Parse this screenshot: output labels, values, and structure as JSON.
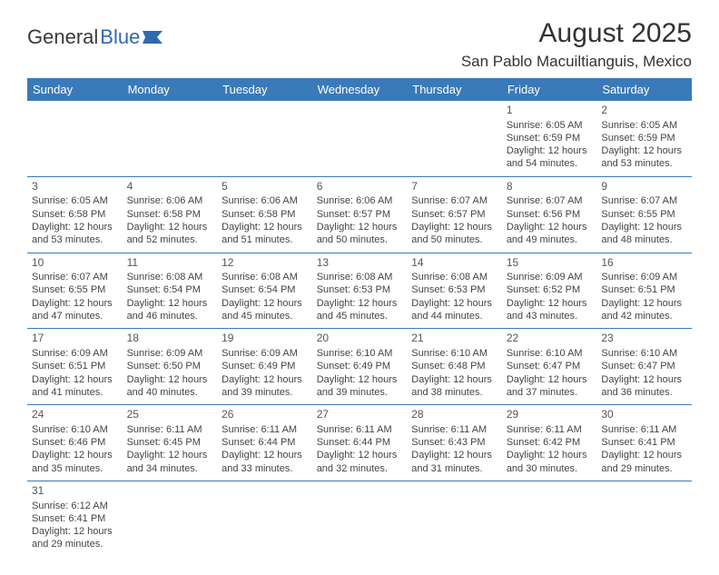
{
  "logo": {
    "text1": "General",
    "text2": "Blue"
  },
  "title": "August 2025",
  "location": "San Pablo Macuiltianguis, Mexico",
  "colors": {
    "header_bg": "#3a7ab8",
    "header_fg": "#ffffff",
    "rule": "#3a7ab8",
    "text": "#444444",
    "logo_blue": "#2f6aad"
  },
  "weekdays": [
    "Sunday",
    "Monday",
    "Tuesday",
    "Wednesday",
    "Thursday",
    "Friday",
    "Saturday"
  ],
  "weeks": [
    [
      null,
      null,
      null,
      null,
      null,
      {
        "n": "1",
        "sr": "Sunrise: 6:05 AM",
        "ss": "Sunset: 6:59 PM",
        "d1": "Daylight: 12 hours",
        "d2": "and 54 minutes."
      },
      {
        "n": "2",
        "sr": "Sunrise: 6:05 AM",
        "ss": "Sunset: 6:59 PM",
        "d1": "Daylight: 12 hours",
        "d2": "and 53 minutes."
      }
    ],
    [
      {
        "n": "3",
        "sr": "Sunrise: 6:05 AM",
        "ss": "Sunset: 6:58 PM",
        "d1": "Daylight: 12 hours",
        "d2": "and 53 minutes."
      },
      {
        "n": "4",
        "sr": "Sunrise: 6:06 AM",
        "ss": "Sunset: 6:58 PM",
        "d1": "Daylight: 12 hours",
        "d2": "and 52 minutes."
      },
      {
        "n": "5",
        "sr": "Sunrise: 6:06 AM",
        "ss": "Sunset: 6:58 PM",
        "d1": "Daylight: 12 hours",
        "d2": "and 51 minutes."
      },
      {
        "n": "6",
        "sr": "Sunrise: 6:06 AM",
        "ss": "Sunset: 6:57 PM",
        "d1": "Daylight: 12 hours",
        "d2": "and 50 minutes."
      },
      {
        "n": "7",
        "sr": "Sunrise: 6:07 AM",
        "ss": "Sunset: 6:57 PM",
        "d1": "Daylight: 12 hours",
        "d2": "and 50 minutes."
      },
      {
        "n": "8",
        "sr": "Sunrise: 6:07 AM",
        "ss": "Sunset: 6:56 PM",
        "d1": "Daylight: 12 hours",
        "d2": "and 49 minutes."
      },
      {
        "n": "9",
        "sr": "Sunrise: 6:07 AM",
        "ss": "Sunset: 6:55 PM",
        "d1": "Daylight: 12 hours",
        "d2": "and 48 minutes."
      }
    ],
    [
      {
        "n": "10",
        "sr": "Sunrise: 6:07 AM",
        "ss": "Sunset: 6:55 PM",
        "d1": "Daylight: 12 hours",
        "d2": "and 47 minutes."
      },
      {
        "n": "11",
        "sr": "Sunrise: 6:08 AM",
        "ss": "Sunset: 6:54 PM",
        "d1": "Daylight: 12 hours",
        "d2": "and 46 minutes."
      },
      {
        "n": "12",
        "sr": "Sunrise: 6:08 AM",
        "ss": "Sunset: 6:54 PM",
        "d1": "Daylight: 12 hours",
        "d2": "and 45 minutes."
      },
      {
        "n": "13",
        "sr": "Sunrise: 6:08 AM",
        "ss": "Sunset: 6:53 PM",
        "d1": "Daylight: 12 hours",
        "d2": "and 45 minutes."
      },
      {
        "n": "14",
        "sr": "Sunrise: 6:08 AM",
        "ss": "Sunset: 6:53 PM",
        "d1": "Daylight: 12 hours",
        "d2": "and 44 minutes."
      },
      {
        "n": "15",
        "sr": "Sunrise: 6:09 AM",
        "ss": "Sunset: 6:52 PM",
        "d1": "Daylight: 12 hours",
        "d2": "and 43 minutes."
      },
      {
        "n": "16",
        "sr": "Sunrise: 6:09 AM",
        "ss": "Sunset: 6:51 PM",
        "d1": "Daylight: 12 hours",
        "d2": "and 42 minutes."
      }
    ],
    [
      {
        "n": "17",
        "sr": "Sunrise: 6:09 AM",
        "ss": "Sunset: 6:51 PM",
        "d1": "Daylight: 12 hours",
        "d2": "and 41 minutes."
      },
      {
        "n": "18",
        "sr": "Sunrise: 6:09 AM",
        "ss": "Sunset: 6:50 PM",
        "d1": "Daylight: 12 hours",
        "d2": "and 40 minutes."
      },
      {
        "n": "19",
        "sr": "Sunrise: 6:09 AM",
        "ss": "Sunset: 6:49 PM",
        "d1": "Daylight: 12 hours",
        "d2": "and 39 minutes."
      },
      {
        "n": "20",
        "sr": "Sunrise: 6:10 AM",
        "ss": "Sunset: 6:49 PM",
        "d1": "Daylight: 12 hours",
        "d2": "and 39 minutes."
      },
      {
        "n": "21",
        "sr": "Sunrise: 6:10 AM",
        "ss": "Sunset: 6:48 PM",
        "d1": "Daylight: 12 hours",
        "d2": "and 38 minutes."
      },
      {
        "n": "22",
        "sr": "Sunrise: 6:10 AM",
        "ss": "Sunset: 6:47 PM",
        "d1": "Daylight: 12 hours",
        "d2": "and 37 minutes."
      },
      {
        "n": "23",
        "sr": "Sunrise: 6:10 AM",
        "ss": "Sunset: 6:47 PM",
        "d1": "Daylight: 12 hours",
        "d2": "and 36 minutes."
      }
    ],
    [
      {
        "n": "24",
        "sr": "Sunrise: 6:10 AM",
        "ss": "Sunset: 6:46 PM",
        "d1": "Daylight: 12 hours",
        "d2": "and 35 minutes."
      },
      {
        "n": "25",
        "sr": "Sunrise: 6:11 AM",
        "ss": "Sunset: 6:45 PM",
        "d1": "Daylight: 12 hours",
        "d2": "and 34 minutes."
      },
      {
        "n": "26",
        "sr": "Sunrise: 6:11 AM",
        "ss": "Sunset: 6:44 PM",
        "d1": "Daylight: 12 hours",
        "d2": "and 33 minutes."
      },
      {
        "n": "27",
        "sr": "Sunrise: 6:11 AM",
        "ss": "Sunset: 6:44 PM",
        "d1": "Daylight: 12 hours",
        "d2": "and 32 minutes."
      },
      {
        "n": "28",
        "sr": "Sunrise: 6:11 AM",
        "ss": "Sunset: 6:43 PM",
        "d1": "Daylight: 12 hours",
        "d2": "and 31 minutes."
      },
      {
        "n": "29",
        "sr": "Sunrise: 6:11 AM",
        "ss": "Sunset: 6:42 PM",
        "d1": "Daylight: 12 hours",
        "d2": "and 30 minutes."
      },
      {
        "n": "30",
        "sr": "Sunrise: 6:11 AM",
        "ss": "Sunset: 6:41 PM",
        "d1": "Daylight: 12 hours",
        "d2": "and 29 minutes."
      }
    ],
    [
      {
        "n": "31",
        "sr": "Sunrise: 6:12 AM",
        "ss": "Sunset: 6:41 PM",
        "d1": "Daylight: 12 hours",
        "d2": "and 29 minutes."
      },
      null,
      null,
      null,
      null,
      null,
      null
    ]
  ]
}
